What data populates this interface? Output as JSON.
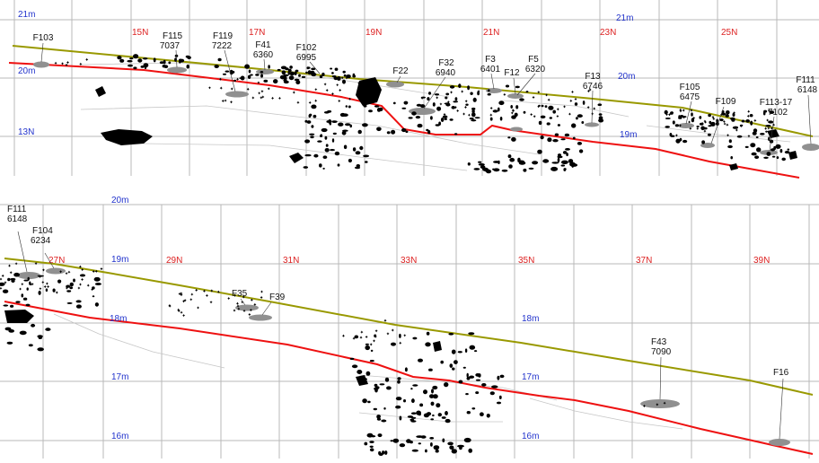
{
  "colors": {
    "grid": "#b8b8b8",
    "surface_line": "#999900",
    "base_line": "#ee1111",
    "feature_fill": "#909090",
    "object_fill": "#000000",
    "northing_text": "#dd2222",
    "elevation_text": "#2233cc",
    "feature_text": "#111111"
  },
  "panels": [
    {
      "id": "upper",
      "northing_labels": [
        "15N",
        "17N",
        "19N",
        "21N",
        "23N",
        "25N"
      ],
      "elevation_labels": [
        "21m",
        "20m",
        "13N",
        "21m",
        "20m",
        "19m"
      ],
      "features": [
        {
          "id": "F103",
          "lines": [
            "F103"
          ]
        },
        {
          "id": "F115",
          "lines": [
            "F115",
            "7037"
          ]
        },
        {
          "id": "F119",
          "lines": [
            "F119",
            "7222"
          ]
        },
        {
          "id": "F41",
          "lines": [
            "F41",
            "6360"
          ]
        },
        {
          "id": "F102",
          "lines": [
            "F102",
            "6995"
          ]
        },
        {
          "id": "F22",
          "lines": [
            "F22"
          ]
        },
        {
          "id": "F32",
          "lines": [
            "F32",
            "6940"
          ]
        },
        {
          "id": "F3",
          "lines": [
            "F3",
            "6401"
          ]
        },
        {
          "id": "F12",
          "lines": [
            "F12"
          ]
        },
        {
          "id": "F5",
          "lines": [
            "F5",
            "6320"
          ]
        },
        {
          "id": "F13",
          "lines": [
            "F13",
            "6746"
          ]
        },
        {
          "id": "F105",
          "lines": [
            "F105",
            "6475"
          ]
        },
        {
          "id": "F109",
          "lines": [
            "F109"
          ]
        },
        {
          "id": "F113-17",
          "lines": [
            "F113-17",
            "7102"
          ]
        },
        {
          "id": "F111",
          "lines": [
            "F111",
            "6148"
          ]
        }
      ]
    },
    {
      "id": "lower",
      "northing_labels": [
        "27N",
        "29N",
        "31N",
        "33N",
        "35N",
        "37N",
        "39N"
      ],
      "elevation_labels": [
        "20m",
        "19m",
        "18m",
        "18m",
        "17m",
        "17m",
        "16m",
        "16m"
      ],
      "features": [
        {
          "id": "F111",
          "lines": [
            "F111",
            "6148"
          ]
        },
        {
          "id": "F104",
          "lines": [
            "F104",
            "6234"
          ]
        },
        {
          "id": "F35",
          "lines": [
            "F35"
          ]
        },
        {
          "id": "F39",
          "lines": [
            "F39"
          ]
        },
        {
          "id": "F43",
          "lines": [
            "F43",
            "7090"
          ]
        },
        {
          "id": "F16",
          "lines": [
            "F16"
          ]
        }
      ]
    }
  ]
}
